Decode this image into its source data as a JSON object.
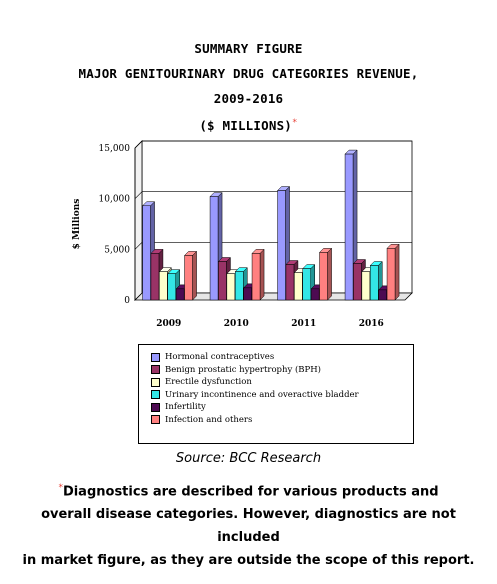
{
  "title_lines": [
    "SUMMARY FIGURE",
    "MAJOR GENITOURINARY DRUG CATEGORIES REVENUE,",
    "2009-2016",
    "($ MILLIONS)"
  ],
  "title_asterisk": "*",
  "source": "Source: BCC Research",
  "footnote": {
    "asterisk": "*",
    "lines": [
      "Diagnostics are described for various products and",
      "overall disease categories. However, diagnostics are not",
      "included",
      "in market figure, as they are outside the scope of this report."
    ]
  },
  "chart_data": {
    "type": "bar",
    "title": "MAJOR GENITOURINARY DRUG CATEGORIES REVENUE, 2009-2016 ($ MILLIONS)",
    "xlabel": "",
    "ylabel": "$ Millions",
    "ylim": [
      0,
      15000
    ],
    "yticks": [
      0,
      5000,
      10000,
      15000
    ],
    "ytick_labels": [
      "0",
      "5,000",
      "10,000",
      "15,000"
    ],
    "categories": [
      "2009",
      "2010",
      "2011",
      "2016"
    ],
    "grid": true,
    "three_d": true,
    "legend_position": "bottom",
    "series": [
      {
        "name": "Hormonal contraceptives",
        "color": "#9999ff",
        "values": [
          9300,
          10200,
          10800,
          14400
        ]
      },
      {
        "name": "Benign prostatic hypertrophy (BPH)",
        "color": "#993366",
        "values": [
          4600,
          3800,
          3500,
          3600
        ]
      },
      {
        "name": "Erectile dysfunction",
        "color": "#ffffcc",
        "values": [
          2800,
          2600,
          2700,
          2800
        ]
      },
      {
        "name": "Urinary incontinence and overactive bladder",
        "color": "#33e6e6",
        "values": [
          2600,
          2800,
          3100,
          3400
        ]
      },
      {
        "name": "Infertility",
        "color": "#4d0a52",
        "values": [
          1100,
          1200,
          1100,
          1000
        ]
      },
      {
        "name": "Infection and others",
        "color": "#ff8080",
        "values": [
          4400,
          4600,
          4700,
          5100
        ]
      }
    ]
  }
}
